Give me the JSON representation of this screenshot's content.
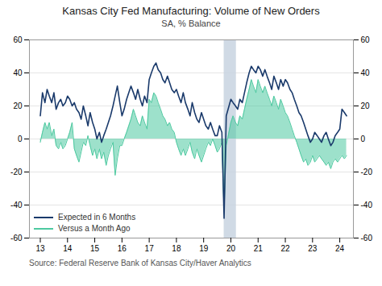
{
  "chart_data": {
    "type": "line",
    "title": "Kansas City Fed Manufacturing: Volume of New Orders",
    "subtitle": "SA, % Balance",
    "source": "Source:  Federal Reserve Bank of Kansas City/Haver Analytics",
    "x": [
      13.0,
      13.08,
      13.17,
      13.25,
      13.33,
      13.42,
      13.5,
      13.58,
      13.67,
      13.75,
      13.83,
      13.92,
      14.0,
      14.08,
      14.17,
      14.25,
      14.33,
      14.42,
      14.5,
      14.58,
      14.67,
      14.75,
      14.83,
      14.92,
      15.0,
      15.08,
      15.17,
      15.25,
      15.33,
      15.42,
      15.5,
      15.58,
      15.67,
      15.75,
      15.83,
      15.92,
      16.0,
      16.08,
      16.17,
      16.25,
      16.33,
      16.42,
      16.5,
      16.58,
      16.67,
      16.75,
      16.83,
      16.92,
      17.0,
      17.08,
      17.17,
      17.25,
      17.33,
      17.42,
      17.5,
      17.58,
      17.67,
      17.75,
      17.83,
      17.92,
      18.0,
      18.08,
      18.17,
      18.25,
      18.33,
      18.42,
      18.5,
      18.58,
      18.67,
      18.75,
      18.83,
      18.92,
      19.0,
      19.08,
      19.17,
      19.25,
      19.33,
      19.42,
      19.5,
      19.58,
      19.67,
      19.75,
      19.83,
      20.0,
      20.08,
      20.17,
      20.25,
      20.33,
      20.42,
      20.5,
      20.58,
      20.67,
      20.75,
      20.83,
      20.92,
      21.0,
      21.08,
      21.17,
      21.25,
      21.33,
      21.42,
      21.5,
      21.58,
      21.67,
      21.75,
      21.83,
      21.92,
      22.0,
      22.08,
      22.17,
      22.25,
      22.33,
      22.42,
      22.5,
      22.58,
      22.67,
      22.75,
      22.83,
      22.92,
      23.0,
      23.08,
      23.17,
      23.25,
      23.33,
      23.42,
      23.5,
      23.58,
      23.67,
      23.75,
      23.83,
      23.92,
      24.0,
      24.08,
      24.17,
      24.25
    ],
    "series": [
      {
        "name": "Expected in 6 Months",
        "type": "line",
        "color": "#1a3a6b",
        "values": [
          14,
          28,
          22,
          30,
          26,
          22,
          28,
          18,
          22,
          24,
          20,
          22,
          26,
          24,
          20,
          22,
          18,
          16,
          12,
          20,
          14,
          8,
          16,
          10,
          6,
          0,
          4,
          -2,
          2,
          6,
          10,
          14,
          20,
          26,
          32,
          22,
          14,
          18,
          24,
          28,
          32,
          28,
          24,
          30,
          24,
          20,
          26,
          22,
          36,
          40,
          44,
          46,
          42,
          40,
          36,
          34,
          38,
          34,
          30,
          28,
          30,
          26,
          22,
          28,
          22,
          18,
          14,
          22,
          16,
          12,
          10,
          16,
          12,
          8,
          6,
          10,
          6,
          2,
          2,
          8,
          4,
          -48,
          14,
          24,
          22,
          20,
          18,
          24,
          22,
          28,
          34,
          40,
          44,
          42,
          40,
          44,
          42,
          38,
          42,
          38,
          34,
          30,
          38,
          34,
          30,
          36,
          32,
          36,
          34,
          30,
          28,
          24,
          20,
          16,
          14,
          10,
          6,
          2,
          -2,
          0,
          4,
          2,
          0,
          -2,
          2,
          4,
          0,
          -4,
          -2,
          2,
          4,
          6,
          18,
          16,
          14
        ]
      },
      {
        "name": "Versus a Month Ago",
        "type": "area",
        "color": "#4dc9a0",
        "values": [
          -2,
          4,
          10,
          6,
          10,
          2,
          6,
          -4,
          -6,
          -2,
          -6,
          -4,
          0,
          4,
          10,
          -6,
          -10,
          -14,
          -8,
          -2,
          -4,
          2,
          -4,
          -10,
          -6,
          -12,
          -6,
          -12,
          -8,
          -16,
          -10,
          -6,
          -2,
          -22,
          -12,
          -4,
          -4,
          0,
          4,
          8,
          12,
          18,
          14,
          10,
          8,
          14,
          10,
          6,
          24,
          22,
          28,
          26,
          22,
          18,
          14,
          12,
          8,
          10,
          6,
          4,
          -2,
          -6,
          -10,
          -6,
          -10,
          -6,
          -2,
          -8,
          -12,
          -6,
          -10,
          -14,
          -10,
          -6,
          -2,
          -4,
          0,
          -4,
          -8,
          -6,
          -2,
          -44,
          -4,
          10,
          14,
          10,
          8,
          14,
          12,
          18,
          24,
          30,
          36,
          32,
          28,
          36,
          32,
          28,
          32,
          28,
          24,
          20,
          26,
          22,
          18,
          24,
          20,
          16,
          14,
          10,
          6,
          2,
          -2,
          -6,
          -10,
          -14,
          -12,
          -16,
          -14,
          -10,
          -14,
          -12,
          -10,
          -12,
          -14,
          -16,
          -14,
          -18,
          -14,
          -12,
          -14,
          -12,
          -10,
          -12,
          -10
        ]
      }
    ],
    "shading": {
      "x": [
        19.75,
        20.2
      ],
      "color": "#c8d4e0"
    },
    "xlim": [
      12.6,
      24.5
    ],
    "xticks": [
      13,
      14,
      15,
      16,
      17,
      18,
      19,
      20,
      21,
      22,
      23,
      24
    ],
    "ylim": [
      -60,
      60
    ],
    "yticks": [
      -60,
      -40,
      -20,
      0,
      20,
      40,
      60
    ],
    "grid": true,
    "legend": "lower left"
  }
}
